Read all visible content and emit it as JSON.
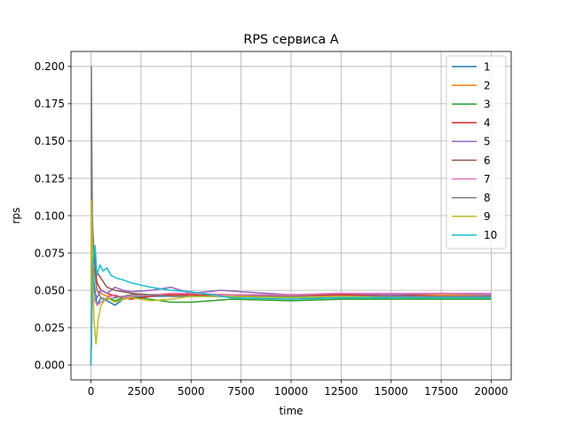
{
  "chart_data": {
    "type": "line",
    "title": "RPS сервиса A",
    "xlabel": "time",
    "ylabel": "rps",
    "xlim": [
      -1000,
      21000
    ],
    "ylim": [
      -0.01,
      0.21
    ],
    "xticks": [
      0,
      2500,
      5000,
      7500,
      10000,
      12500,
      15000,
      17500,
      20000
    ],
    "xtick_labels": [
      "0",
      "2500",
      "5000",
      "7500",
      "10000",
      "12500",
      "15000",
      "17500",
      "20000"
    ],
    "yticks": [
      0.0,
      0.025,
      0.05,
      0.075,
      0.1,
      0.125,
      0.15,
      0.175,
      0.2
    ],
    "ytick_labels": [
      "0.000",
      "0.025",
      "0.050",
      "0.075",
      "0.100",
      "0.125",
      "0.150",
      "0.175",
      "0.200"
    ],
    "grid": true,
    "legend_position": "top-right",
    "series": [
      {
        "name": "1",
        "color": "#1f77b4",
        "x": [
          0,
          60,
          150,
          300,
          500,
          800,
          1200,
          1600,
          2000,
          3000,
          4000,
          5000,
          7000,
          10000,
          12500,
          15000,
          17500,
          20000
        ],
        "y": [
          0.0,
          0.07,
          0.055,
          0.04,
          0.045,
          0.043,
          0.04,
          0.044,
          0.045,
          0.046,
          0.046,
          0.046,
          0.046,
          0.045,
          0.045,
          0.045,
          0.045,
          0.045
        ]
      },
      {
        "name": "2",
        "color": "#ff7f0e",
        "x": [
          0,
          60,
          150,
          300,
          500,
          800,
          1200,
          1600,
          2000,
          3000,
          4000,
          5000,
          7000,
          10000,
          12500,
          15000,
          17500,
          20000
        ],
        "y": [
          0.0,
          0.05,
          0.065,
          0.05,
          0.048,
          0.046,
          0.047,
          0.045,
          0.046,
          0.047,
          0.047,
          0.048,
          0.047,
          0.047,
          0.047,
          0.047,
          0.047,
          0.047
        ]
      },
      {
        "name": "3",
        "color": "#2ca02c",
        "x": [
          0,
          60,
          150,
          300,
          500,
          800,
          1200,
          1600,
          2000,
          3000,
          4000,
          5000,
          7000,
          10000,
          12500,
          15000,
          17500,
          20000
        ],
        "y": [
          0.0,
          0.06,
          0.045,
          0.04,
          0.042,
          0.045,
          0.043,
          0.045,
          0.046,
          0.044,
          0.042,
          0.042,
          0.044,
          0.043,
          0.044,
          0.044,
          0.044,
          0.044
        ]
      },
      {
        "name": "4",
        "color": "#d62728",
        "x": [
          0,
          60,
          150,
          300,
          500,
          800,
          1200,
          1600,
          2000,
          3000,
          4000,
          5000,
          7000,
          10000,
          12500,
          15000,
          17500,
          20000
        ],
        "y": [
          0.0,
          0.09,
          0.07,
          0.055,
          0.05,
          0.048,
          0.046,
          0.045,
          0.044,
          0.046,
          0.047,
          0.047,
          0.046,
          0.047,
          0.047,
          0.047,
          0.046,
          0.046
        ]
      },
      {
        "name": "5",
        "color": "#9467bd",
        "x": [
          0,
          60,
          150,
          300,
          500,
          800,
          1200,
          1600,
          2000,
          3000,
          4000,
          5000,
          6500,
          7500,
          10000,
          12500,
          15000,
          17500,
          20000
        ],
        "y": [
          0.0,
          0.055,
          0.05,
          0.045,
          0.05,
          0.048,
          0.052,
          0.05,
          0.049,
          0.05,
          0.052,
          0.048,
          0.05,
          0.049,
          0.047,
          0.048,
          0.047,
          0.048,
          0.047
        ]
      },
      {
        "name": "6",
        "color": "#8c564b",
        "x": [
          0,
          60,
          150,
          300,
          500,
          800,
          1200,
          1600,
          2000,
          3000,
          4000,
          5000,
          7000,
          10000,
          12500,
          15000,
          17500,
          20000
        ],
        "y": [
          0.0,
          0.098,
          0.075,
          0.062,
          0.058,
          0.052,
          0.05,
          0.049,
          0.048,
          0.047,
          0.046,
          0.046,
          0.046,
          0.046,
          0.046,
          0.046,
          0.046,
          0.046
        ]
      },
      {
        "name": "7",
        "color": "#e377c2",
        "x": [
          0,
          60,
          150,
          300,
          500,
          800,
          1200,
          1600,
          2000,
          3000,
          4000,
          5000,
          7000,
          10000,
          12500,
          15000,
          17500,
          20000
        ],
        "y": [
          0.0,
          0.04,
          0.045,
          0.04,
          0.042,
          0.045,
          0.047,
          0.045,
          0.046,
          0.047,
          0.048,
          0.048,
          0.047,
          0.047,
          0.048,
          0.048,
          0.048,
          0.048
        ]
      },
      {
        "name": "8",
        "color": "#7f7f7f",
        "x": [
          0,
          20,
          40,
          70,
          120,
          200,
          300,
          500,
          800,
          1200,
          1600,
          2000,
          3000,
          4000,
          5000,
          7000,
          10000,
          12500,
          15000,
          17500,
          20000
        ],
        "y": [
          0.0,
          0.2,
          0.15,
          0.1,
          0.08,
          0.06,
          0.05,
          0.045,
          0.044,
          0.045,
          0.046,
          0.047,
          0.047,
          0.046,
          0.046,
          0.046,
          0.046,
          0.046,
          0.046,
          0.046,
          0.046
        ]
      },
      {
        "name": "9",
        "color": "#bcbd22",
        "x": [
          0,
          20,
          60,
          150,
          250,
          350,
          500,
          800,
          1200,
          1600,
          2000,
          3000,
          4000,
          5000,
          7000,
          10000,
          12500,
          15000,
          17500,
          20000
        ],
        "y": [
          0.0,
          0.11,
          0.08,
          0.03,
          0.014,
          0.03,
          0.04,
          0.045,
          0.042,
          0.044,
          0.045,
          0.043,
          0.044,
          0.046,
          0.046,
          0.045,
          0.046,
          0.045,
          0.045,
          0.045
        ]
      },
      {
        "name": "10",
        "color": "#17becf",
        "x": [
          0,
          30,
          100,
          200,
          300,
          450,
          600,
          800,
          1000,
          1300,
          1600,
          2000,
          3000,
          4000,
          5000,
          7000,
          10000,
          12500,
          15000,
          17500,
          20000
        ],
        "y": [
          0.0,
          0.04,
          0.07,
          0.08,
          0.06,
          0.067,
          0.063,
          0.065,
          0.06,
          0.058,
          0.057,
          0.055,
          0.052,
          0.05,
          0.049,
          0.045,
          0.044,
          0.045,
          0.045,
          0.045,
          0.045
        ]
      }
    ]
  }
}
